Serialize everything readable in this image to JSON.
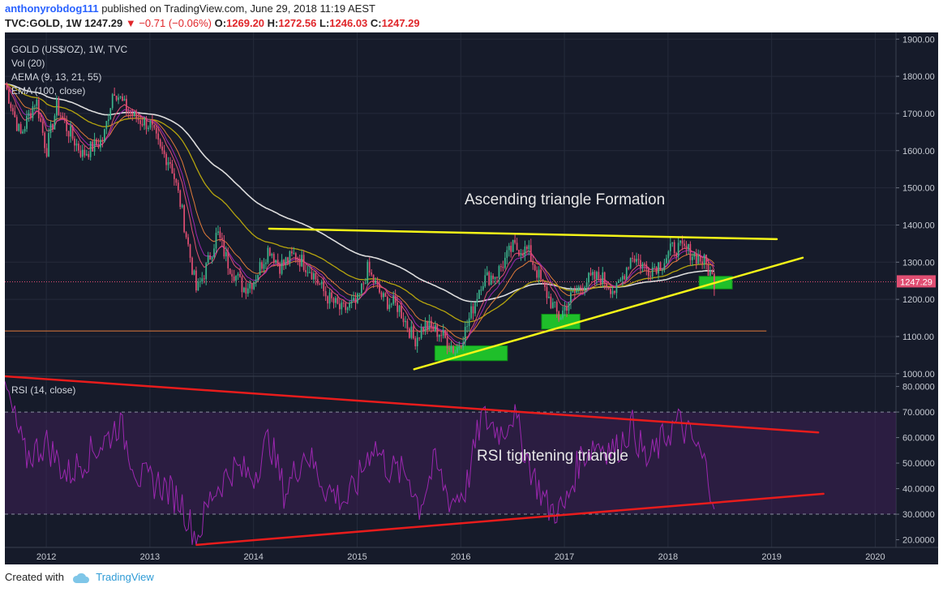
{
  "header": {
    "user": "anthonyrobdog111",
    "published": " published on TradingView.com, June 29, 2018 11:19 AEST",
    "symbol_line": "TVC:GOLD, 1W 1247.29",
    "change": "−0.71 (−0.06%)",
    "open_label": "O:",
    "open": "1269.20",
    "high_label": "H:",
    "high": "1272.56",
    "low_label": "L:",
    "low": "1246.03",
    "close_label": "C:",
    "close": "1247.29"
  },
  "legend": {
    "title": "GOLD (US$/OZ), 1W, TVC",
    "vol": "Vol (20)",
    "aema": "AEMA (9, 13, 21, 55)",
    "ema": "EMA (100, close)",
    "rsi": "RSI (14, close)"
  },
  "annotations": {
    "price": "Ascending triangle Formation",
    "rsi": "RSI tightening triangle"
  },
  "last_price_tag": "1247.29",
  "footer": {
    "created": "Created with",
    "brand": "TradingView"
  },
  "colors": {
    "background": "#161b2a",
    "up_candle": "#3cb48c",
    "down_candle": "#e04e72",
    "trendline": "#f5f518",
    "rsi_line": "#9c27b0",
    "rsi_trend": "#e81c1c",
    "ema100": "#dddddd",
    "aema_slow": "#b5a40e"
  },
  "chart_data": {
    "type": "line",
    "x_ticks": [
      "2012",
      "2013",
      "2014",
      "2015",
      "2016",
      "2017",
      "2018",
      "2019",
      "2020"
    ],
    "price": {
      "y_ticks": [
        "1900.00",
        "1800.00",
        "1700.00",
        "1600.00",
        "1500.00",
        "1400.00",
        "1300.00",
        "1200.00",
        "1100.00",
        "1000.00"
      ],
      "ylim": [
        993,
        1918
      ],
      "close_weekly_approx": {
        "x": [
          2011.6,
          2011.75,
          2011.9,
          2012.0,
          2012.1,
          2012.2,
          2012.35,
          2012.45,
          2012.55,
          2012.65,
          2012.75,
          2012.85,
          2013.0,
          2013.1,
          2013.2,
          2013.3,
          2013.45,
          2013.55,
          2013.65,
          2013.75,
          2013.9,
          2014.0,
          2014.15,
          2014.25,
          2014.4,
          2014.55,
          2014.7,
          2014.85,
          2015.0,
          2015.1,
          2015.25,
          2015.4,
          2015.55,
          2015.65,
          2015.8,
          2015.95,
          2016.05,
          2016.2,
          2016.35,
          2016.5,
          2016.65,
          2016.8,
          2016.95,
          2017.05,
          2017.2,
          2017.35,
          2017.5,
          2017.65,
          2017.8,
          2017.95,
          2018.05,
          2018.2,
          2018.35,
          2018.45
        ],
        "y": [
          1780,
          1640,
          1740,
          1600,
          1720,
          1660,
          1590,
          1610,
          1630,
          1770,
          1720,
          1690,
          1670,
          1600,
          1570,
          1450,
          1220,
          1290,
          1380,
          1300,
          1230,
          1250,
          1340,
          1290,
          1320,
          1280,
          1210,
          1170,
          1190,
          1280,
          1200,
          1180,
          1090,
          1130,
          1110,
          1060,
          1120,
          1250,
          1270,
          1340,
          1330,
          1230,
          1150,
          1200,
          1250,
          1260,
          1220,
          1320,
          1280,
          1300,
          1340,
          1330,
          1300,
          1247
        ]
      }
    },
    "rsi": {
      "y_ticks": [
        "80.0000",
        "70.0000",
        "60.0000",
        "50.0000",
        "40.0000",
        "30.0000",
        "20.0000"
      ],
      "ylim": [
        17,
        84
      ],
      "band": [
        30,
        70
      ],
      "x": [
        2011.6,
        2011.8,
        2012.0,
        2012.2,
        2012.4,
        2012.6,
        2012.7,
        2012.9,
        2013.1,
        2013.3,
        2013.45,
        2013.6,
        2013.8,
        2014.0,
        2014.15,
        2014.3,
        2014.5,
        2014.7,
        2014.9,
        2015.0,
        2015.15,
        2015.3,
        2015.5,
        2015.6,
        2015.75,
        2015.9,
        2016.05,
        2016.2,
        2016.4,
        2016.5,
        2016.7,
        2016.85,
        2017.0,
        2017.15,
        2017.3,
        2017.5,
        2017.65,
        2017.8,
        2018.0,
        2018.1,
        2018.25,
        2018.35,
        2018.45
      ],
      "values": [
        80,
        52,
        58,
        45,
        53,
        60,
        66,
        44,
        42,
        35,
        20,
        38,
        48,
        45,
        60,
        38,
        55,
        40,
        35,
        42,
        58,
        48,
        45,
        33,
        50,
        35,
        40,
        68,
        62,
        70,
        45,
        32,
        32,
        52,
        58,
        55,
        65,
        50,
        62,
        66,
        58,
        50,
        36
      ]
    },
    "trendlines": {
      "price_resistance": [
        [
          2014.15,
          1390
        ],
        [
          2019.05,
          1362
        ]
      ],
      "price_support": [
        [
          2015.55,
          1012
        ],
        [
          2019.3,
          1312
        ]
      ],
      "rsi_resistance": [
        [
          2011.6,
          84
        ],
        [
          2019.45,
          62
        ]
      ],
      "rsi_support": [
        [
          2013.45,
          18
        ],
        [
          2019.5,
          38
        ]
      ]
    },
    "horizontal_levels": [
      1115,
      1247.29
    ],
    "highlight_boxes": [
      {
        "x": [
          2015.75,
          2016.45
        ],
        "y": [
          1035,
          1075
        ]
      },
      {
        "x": [
          2016.78,
          2017.15
        ],
        "y": [
          1120,
          1160
        ]
      },
      {
        "x": [
          2018.3,
          2018.62
        ],
        "y": [
          1228,
          1262
        ]
      }
    ]
  }
}
